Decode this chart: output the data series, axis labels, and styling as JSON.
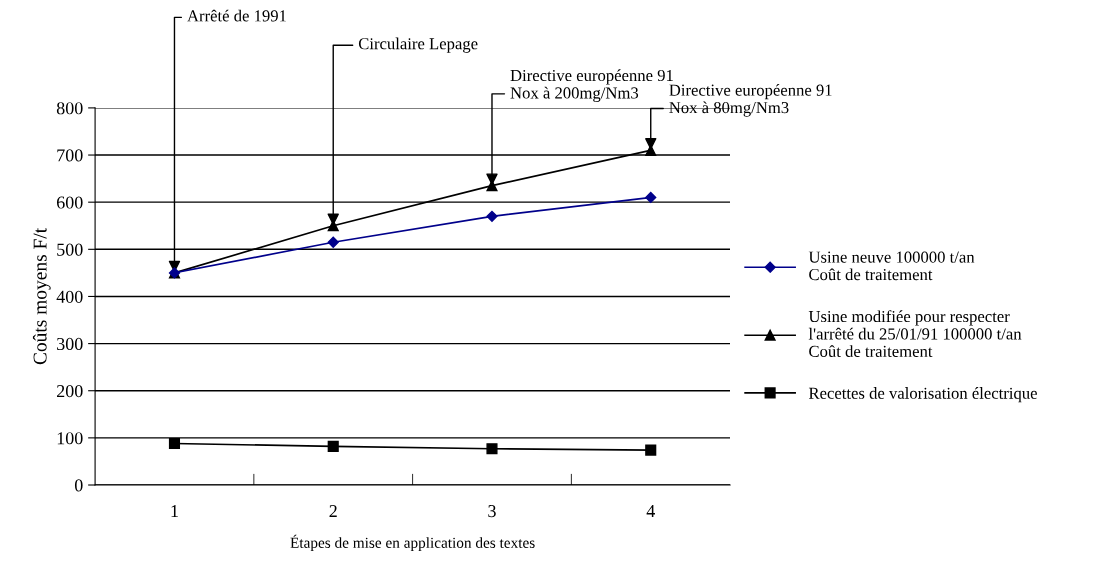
{
  "chart_data": {
    "type": "line",
    "xlabel": "Étapes de mise en application des textes",
    "ylabel": "Coûts moyens F/t",
    "categories": [
      "1",
      "2",
      "3",
      "4"
    ],
    "series": [
      {
        "name": "Usine neuve 100000 t/an\nCoût de traitement",
        "color": "#00008b",
        "marker": "diamond",
        "values": [
          450,
          515,
          570,
          610
        ]
      },
      {
        "name": "Usine modifiée pour respecter\nl'arrêté du 25/01/91 100000 t/an\nCoût de traitement",
        "color": "#000000",
        "marker": "triangle",
        "values": [
          450,
          550,
          635,
          710
        ]
      },
      {
        "name": "Recettes de valorisation électrique",
        "color": "#000000",
        "marker": "square",
        "values": [
          88,
          82,
          77,
          74
        ]
      }
    ],
    "ylim": [
      0,
      800
    ],
    "yticks": [
      0,
      100,
      200,
      300,
      400,
      500,
      600,
      700,
      800
    ],
    "grid": "y",
    "legend": "right",
    "annotations": [
      {
        "text": "Arrêté de 1991",
        "x": "1",
        "y": 450
      },
      {
        "text": "Circulaire Lepage",
        "x": "2",
        "y": 550
      },
      {
        "text": "Directive européenne 91\nNox à 200mg/Nm3",
        "x": "3",
        "y": 635
      },
      {
        "text": "Directive européenne 91\nNox à 80mg/Nm3",
        "x": "4",
        "y": 710
      }
    ]
  }
}
